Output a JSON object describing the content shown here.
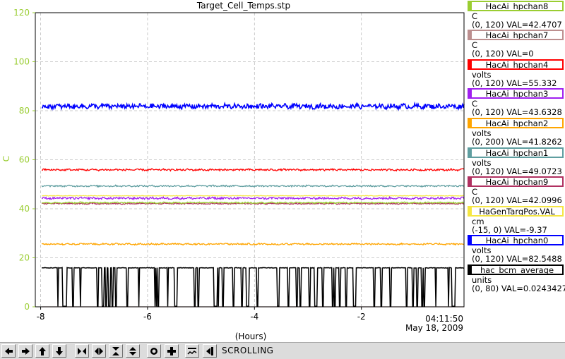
{
  "chart_data": {
    "type": "line",
    "title": "Target_Cell_Temps.stp",
    "xlabel": "(Hours)",
    "ylabel": "C",
    "xlim": [
      -8.1,
      -0.08
    ],
    "ylim": [
      0,
      120
    ],
    "xticks": [
      -8,
      -6,
      -4,
      -2
    ],
    "yticks": [
      0,
      20,
      40,
      60,
      80,
      100,
      120
    ],
    "grid": true,
    "time_label": "04:11:50",
    "date_label": "May 18, 2009",
    "legend_position": "right",
    "series": [
      {
        "name": "HacAi_hpchan8",
        "units": "C",
        "range": "(0, 120)",
        "val_text": "VAL=42.4707",
        "color": "#9acd32",
        "level": 42.47,
        "noise": 0.25
      },
      {
        "name": "HacAi_hpchan7",
        "units": "C",
        "range": "(0, 120)",
        "val_text": "VAL=0",
        "color": "#bc8f8f",
        "level": 0,
        "noise": 0
      },
      {
        "name": "HacAi_hpchan4",
        "units": "volts",
        "range": "(0, 120)",
        "val_text": "VAL=55.332",
        "color": "#ff0000",
        "level": 55.9,
        "noise": 0.35
      },
      {
        "name": "HacAi_hpchan3",
        "units": "C",
        "range": "(0, 120)",
        "val_text": "VAL=43.6328",
        "color": "#a020f0",
        "level": 44.3,
        "noise": 0.4
      },
      {
        "name": "HacAi_hpchan2",
        "units": "volts",
        "range": "(0, 200)",
        "val_text": "VAL=41.8262",
        "color": "#ffa500",
        "level": 25.6,
        "noise": 0.3
      },
      {
        "name": "HacAi_hpchan1",
        "units": "volts",
        "range": "(0, 120)",
        "val_text": "VAL=49.0723",
        "color": "#5f9ea0",
        "level": 49.3,
        "noise": 0.3
      },
      {
        "name": "HacAi_hpchan9",
        "units": "C",
        "range": "(0, 120)",
        "val_text": "VAL=42.0996",
        "color": "#b03060",
        "level": 42.1,
        "noise": 0.25
      },
      {
        "name": "HaGenTargPos.VAL",
        "units": "cm",
        "range": "(-15, 0)",
        "val_text": "VAL=-9.37",
        "color": "#f5e642",
        "level": 45.3,
        "noise": 0.1
      },
      {
        "name": "HacAi_hpchan0",
        "units": "volts",
        "range": "(0, 120)",
        "val_text": "VAL=82.5488",
        "color": "#0000ff",
        "level": 81.8,
        "noise": 0.9
      },
      {
        "name": "hac_bcm_average",
        "units": "units",
        "range": "(0, 80)",
        "val_text": "VAL=0.0243427",
        "color": "#000000",
        "level": 15.9,
        "noise": 0.2,
        "dropouts": true
      }
    ]
  },
  "toolbar": {
    "buttons": [
      {
        "name": "scroll-left-button",
        "icon": "arrow-left-icon"
      },
      {
        "name": "scroll-right-button",
        "icon": "arrow-right-icon"
      },
      {
        "name": "scroll-up-button",
        "icon": "arrow-up-icon"
      },
      {
        "name": "scroll-down-button",
        "icon": "arrow-down-icon"
      },
      {
        "name": "zoom-in-horizontal-button",
        "icon": "zoom-in-horizontal-icon"
      },
      {
        "name": "zoom-out-horizontal-button",
        "icon": "zoom-out-horizontal-icon"
      },
      {
        "name": "zoom-in-vertical-button",
        "icon": "zoom-in-vertical-icon"
      },
      {
        "name": "zoom-out-vertical-button",
        "icon": "zoom-out-vertical-icon"
      },
      {
        "name": "auto-scale-button",
        "icon": "circle-icon"
      },
      {
        "name": "add-button",
        "icon": "plus-icon"
      },
      {
        "name": "stagger-button",
        "icon": "stagger-icon"
      },
      {
        "name": "pause-button",
        "icon": "pause-back-icon"
      }
    ],
    "status": "SCROLLING"
  }
}
